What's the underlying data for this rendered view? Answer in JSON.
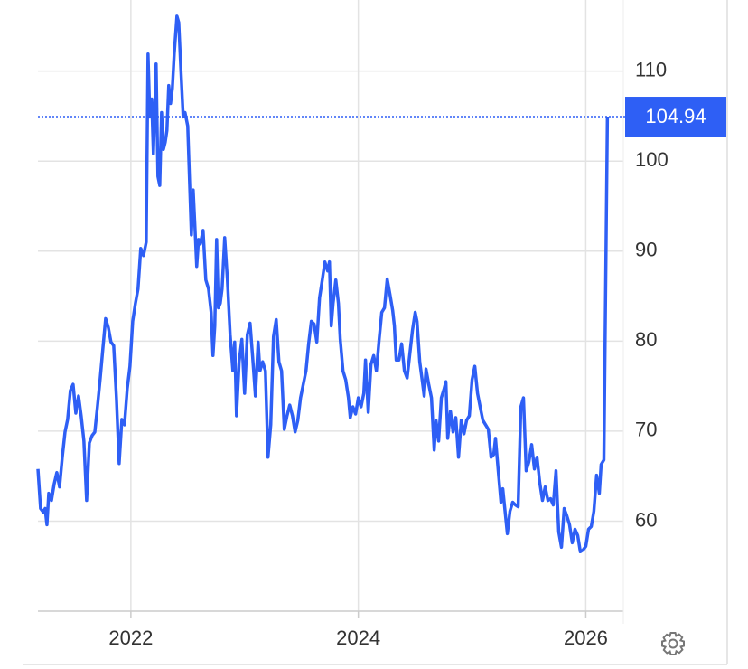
{
  "chart_data": {
    "type": "line",
    "x": [
      2021.183,
      2021.206,
      2021.23,
      2021.246,
      2021.262,
      2021.278,
      2021.302,
      2021.325,
      2021.349,
      2021.373,
      2021.397,
      2021.421,
      2021.444,
      2021.468,
      2021.492,
      2021.516,
      2021.54,
      2021.563,
      2021.587,
      2021.611,
      2021.635,
      2021.659,
      2021.683,
      2021.706,
      2021.73,
      2021.754,
      2021.778,
      2021.802,
      2021.825,
      2021.849,
      2021.873,
      2021.897,
      2021.921,
      2021.944,
      2021.968,
      2021.992,
      2022.016,
      2022.04,
      2022.063,
      2022.087,
      2022.111,
      2022.135,
      2022.151,
      2022.167,
      2022.183,
      2022.198,
      2022.222,
      2022.238,
      2022.254,
      2022.27,
      2022.286,
      2022.302,
      2022.317,
      2022.333,
      2022.349,
      2022.365,
      2022.381,
      2022.405,
      2022.421,
      2022.437,
      2022.46,
      2022.476,
      2022.5,
      2022.516,
      2022.532,
      2022.548,
      2022.563,
      2022.579,
      2022.595,
      2022.611,
      2022.635,
      2022.659,
      2022.683,
      2022.706,
      2022.722,
      2022.738,
      2022.754,
      2022.77,
      2022.786,
      2022.802,
      2022.825,
      2022.849,
      2022.873,
      2022.897,
      2022.913,
      2022.929,
      2022.952,
      2022.976,
      2023.0,
      2023.024,
      2023.048,
      2023.071,
      2023.095,
      2023.119,
      2023.135,
      2023.159,
      2023.183,
      2023.206,
      2023.23,
      2023.254,
      2023.278,
      2023.302,
      2023.325,
      2023.349,
      2023.373,
      2023.397,
      2023.421,
      2023.444,
      2023.468,
      2023.492,
      2023.516,
      2023.54,
      2023.563,
      2023.587,
      2023.611,
      2023.635,
      2023.659,
      2023.683,
      2023.706,
      2023.73,
      2023.746,
      2023.762,
      2023.778,
      2023.802,
      2023.825,
      2023.841,
      2023.865,
      2023.889,
      2023.913,
      2023.929,
      2023.952,
      2023.976,
      2024.0,
      2024.024,
      2024.048,
      2024.063,
      2024.087,
      2024.111,
      2024.135,
      2024.159,
      2024.183,
      2024.206,
      2024.23,
      2024.254,
      2024.278,
      2024.302,
      2024.317,
      2024.333,
      2024.357,
      2024.381,
      2024.405,
      2024.429,
      2024.452,
      2024.476,
      2024.5,
      2024.516,
      2024.54,
      2024.563,
      2024.579,
      2024.595,
      2024.619,
      2024.643,
      2024.667,
      2024.683,
      2024.706,
      2024.73,
      2024.754,
      2024.77,
      2024.786,
      2024.81,
      2024.833,
      2024.857,
      2024.881,
      2024.905,
      2024.929,
      2024.952,
      2024.976,
      2025.0,
      2025.024,
      2025.048,
      2025.071,
      2025.095,
      2025.119,
      2025.143,
      2025.167,
      2025.19,
      2025.206,
      2025.23,
      2025.254,
      2025.27,
      2025.286,
      2025.31,
      2025.333,
      2025.357,
      2025.381,
      2025.405,
      2025.429,
      2025.452,
      2025.476,
      2025.5,
      2025.524,
      2025.548,
      2025.571,
      2025.595,
      2025.619,
      2025.643,
      2025.667,
      2025.69,
      2025.714,
      2025.738,
      2025.762,
      2025.786,
      2025.81,
      2025.833,
      2025.857,
      2025.881,
      2025.905,
      2025.929,
      2025.952,
      2025.976,
      2026.0,
      2026.024,
      2026.048,
      2026.071,
      2026.095,
      2026.119,
      2026.135,
      2026.159,
      2026.19
    ],
    "series": [
      {
        "color": "#2e5ff5",
        "values": [
          65.8,
          61.4,
          61.0,
          61.4,
          59.6,
          63.1,
          62.3,
          64.1,
          65.4,
          63.8,
          67.1,
          69.9,
          71.3,
          74.5,
          75.2,
          72.0,
          73.9,
          71.7,
          68.9,
          62.3,
          68.7,
          69.5,
          69.9,
          72.7,
          75.8,
          79.2,
          82.5,
          81.5,
          79.9,
          79.5,
          73.7,
          66.4,
          71.3,
          70.7,
          74.7,
          77.2,
          82.2,
          84.2,
          85.8,
          90.3,
          89.5,
          91.0,
          111.9,
          104.9,
          106.9,
          100.8,
          110.8,
          98.3,
          97.3,
          105.4,
          101.3,
          102.1,
          103.4,
          108.4,
          106.4,
          108.1,
          111.9,
          116.1,
          115.4,
          110.9,
          104.9,
          105.4,
          103.9,
          97.8,
          91.8,
          96.8,
          92.8,
          88.3,
          91.3,
          90.8,
          92.3,
          86.8,
          85.8,
          83.2,
          78.4,
          81.7,
          91.3,
          83.7,
          84.2,
          85.8,
          91.5,
          86.8,
          80.7,
          76.7,
          79.9,
          71.7,
          77.7,
          80.2,
          74.2,
          80.7,
          82.0,
          78.2,
          73.9,
          79.9,
          76.7,
          77.7,
          76.7,
          67.1,
          70.7,
          80.5,
          82.4,
          77.7,
          76.7,
          70.2,
          71.7,
          72.9,
          71.7,
          69.9,
          71.2,
          73.7,
          75.2,
          76.7,
          79.7,
          82.2,
          81.9,
          79.9,
          84.8,
          86.8,
          88.8,
          87.8,
          88.8,
          81.7,
          84.2,
          86.8,
          84.2,
          80.2,
          76.7,
          75.7,
          73.7,
          71.5,
          72.7,
          71.9,
          73.7,
          72.7,
          74.2,
          77.9,
          72.1,
          77.4,
          78.4,
          76.7,
          80.2,
          83.2,
          83.7,
          86.9,
          85.2,
          83.4,
          81.7,
          77.9,
          77.9,
          79.7,
          76.7,
          75.9,
          78.5,
          81.2,
          83.2,
          82.2,
          77.7,
          75.5,
          73.9,
          76.9,
          75.2,
          73.7,
          67.9,
          71.2,
          68.9,
          73.7,
          74.7,
          75.5,
          69.2,
          72.2,
          69.9,
          71.5,
          67.1,
          71.2,
          69.7,
          71.2,
          71.7,
          75.7,
          77.2,
          74.2,
          72.7,
          71.2,
          70.7,
          70.2,
          67.1,
          67.4,
          69.2,
          65.6,
          62.1,
          63.6,
          61.6,
          58.6,
          61.1,
          62.1,
          61.8,
          61.6,
          72.7,
          73.7,
          65.6,
          66.6,
          68.5,
          65.8,
          67.1,
          64.3,
          62.3,
          63.8,
          62.3,
          62.5,
          61.8,
          65.6,
          58.8,
          57.1,
          61.4,
          60.6,
          59.6,
          57.6,
          59.1,
          58.4,
          56.6,
          56.8,
          57.2,
          59.1,
          59.4,
          61.1,
          65.1,
          63.1,
          66.3,
          66.8,
          104.94
        ]
      }
    ],
    "xlim": [
      2021.183,
      2026.33
    ],
    "xticks": [
      2022,
      2024,
      2026
    ],
    "ylim": [
      50,
      117.9
    ],
    "yticks": [
      60,
      70,
      80,
      90,
      100,
      110
    ],
    "grid": true
  }
}
